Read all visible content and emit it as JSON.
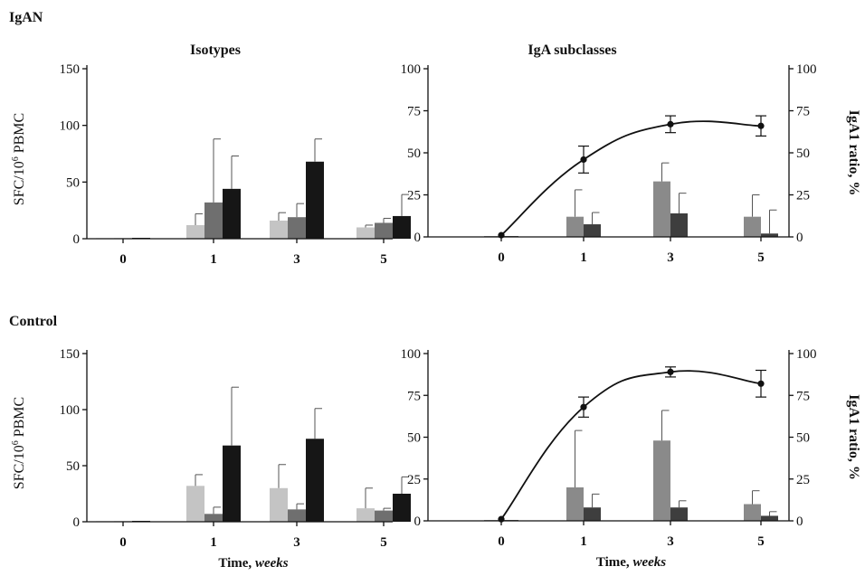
{
  "figure": {
    "group_labels": [
      "IgAN",
      "Control"
    ],
    "shared_xlabel": {
      "text": "Time, ",
      "italic": "weeks"
    },
    "shared_ylabel_left": {
      "prefix": "SFC/10",
      "sup": "6",
      "suffix": " PBMC"
    },
    "shared_ylabel_right": "IgA1 ratio, %"
  },
  "colors": {
    "iso1": "#c4c4c4",
    "iso2": "#6f6f6f",
    "iso3": "#161616",
    "sub1": "#8a8a8a",
    "sub2": "#3e3e3e",
    "axis": "#111111",
    "error": "#555555"
  },
  "chart_data": [
    {
      "id": "igan-isotypes",
      "group": "IgAN",
      "title": "Isotypes",
      "type": "bar",
      "categories": [
        "0",
        "1",
        "3",
        "5"
      ],
      "ylim": [
        0,
        150
      ],
      "yticks": [
        0,
        50,
        100,
        150
      ],
      "series": [
        {
          "color_key": "iso1",
          "values": [
            0.5,
            12,
            16,
            10
          ],
          "errors": [
            0.3,
            10,
            7,
            2
          ]
        },
        {
          "color_key": "iso2",
          "values": [
            0.5,
            32,
            19,
            14
          ],
          "errors": [
            0.3,
            56,
            12,
            4
          ]
        },
        {
          "color_key": "iso3",
          "values": [
            0.8,
            44,
            68,
            20
          ],
          "errors": [
            0.3,
            29,
            20,
            19
          ]
        }
      ]
    },
    {
      "id": "igan-subclasses",
      "group": "IgAN",
      "title": "IgA subclasses",
      "type": "bar+line",
      "categories": [
        "0",
        "1",
        "3",
        "5"
      ],
      "ylim": [
        0,
        100
      ],
      "yticks": [
        0,
        25,
        50,
        75,
        100
      ],
      "y2lim": [
        0,
        100
      ],
      "y2ticks": [
        0,
        25,
        50,
        75,
        100
      ],
      "series": [
        {
          "color_key": "sub1",
          "values": [
            0.5,
            12,
            33,
            12
          ],
          "errors": [
            0.3,
            16,
            11,
            13
          ]
        },
        {
          "color_key": "sub2",
          "values": [
            0.5,
            7.5,
            14,
            2
          ],
          "errors": [
            0.3,
            7,
            12,
            14
          ]
        }
      ],
      "ratio": {
        "values": [
          1,
          46,
          67,
          66
        ],
        "errors": [
          0,
          8,
          5,
          6
        ]
      }
    },
    {
      "id": "control-isotypes",
      "group": "Control",
      "title": "",
      "type": "bar",
      "categories": [
        "0",
        "1",
        "3",
        "5"
      ],
      "ylim": [
        0,
        150
      ],
      "yticks": [
        0,
        50,
        100,
        150
      ],
      "series": [
        {
          "color_key": "iso1",
          "values": [
            0.5,
            32,
            30,
            12
          ],
          "errors": [
            0.3,
            10,
            21,
            18
          ]
        },
        {
          "color_key": "iso2",
          "values": [
            0.5,
            7,
            11,
            10
          ],
          "errors": [
            0.3,
            6,
            5,
            2
          ]
        },
        {
          "color_key": "iso3",
          "values": [
            0.8,
            68,
            74,
            25
          ],
          "errors": [
            0.3,
            52,
            27,
            15
          ]
        }
      ]
    },
    {
      "id": "control-subclasses",
      "group": "Control",
      "title": "",
      "type": "bar+line",
      "categories": [
        "0",
        "1",
        "3",
        "5"
      ],
      "ylim": [
        0,
        100
      ],
      "yticks": [
        0,
        25,
        50,
        75,
        100
      ],
      "y2lim": [
        0,
        100
      ],
      "y2ticks": [
        0,
        25,
        50,
        75,
        100
      ],
      "series": [
        {
          "color_key": "sub1",
          "values": [
            0.5,
            20,
            48,
            10
          ],
          "errors": [
            0.3,
            34,
            18,
            8
          ]
        },
        {
          "color_key": "sub2",
          "values": [
            0.5,
            8,
            8,
            3
          ],
          "errors": [
            0.3,
            8,
            4,
            2.5
          ]
        }
      ],
      "ratio": {
        "values": [
          1,
          68,
          89,
          82
        ],
        "errors": [
          0,
          6,
          3,
          8
        ]
      }
    }
  ]
}
